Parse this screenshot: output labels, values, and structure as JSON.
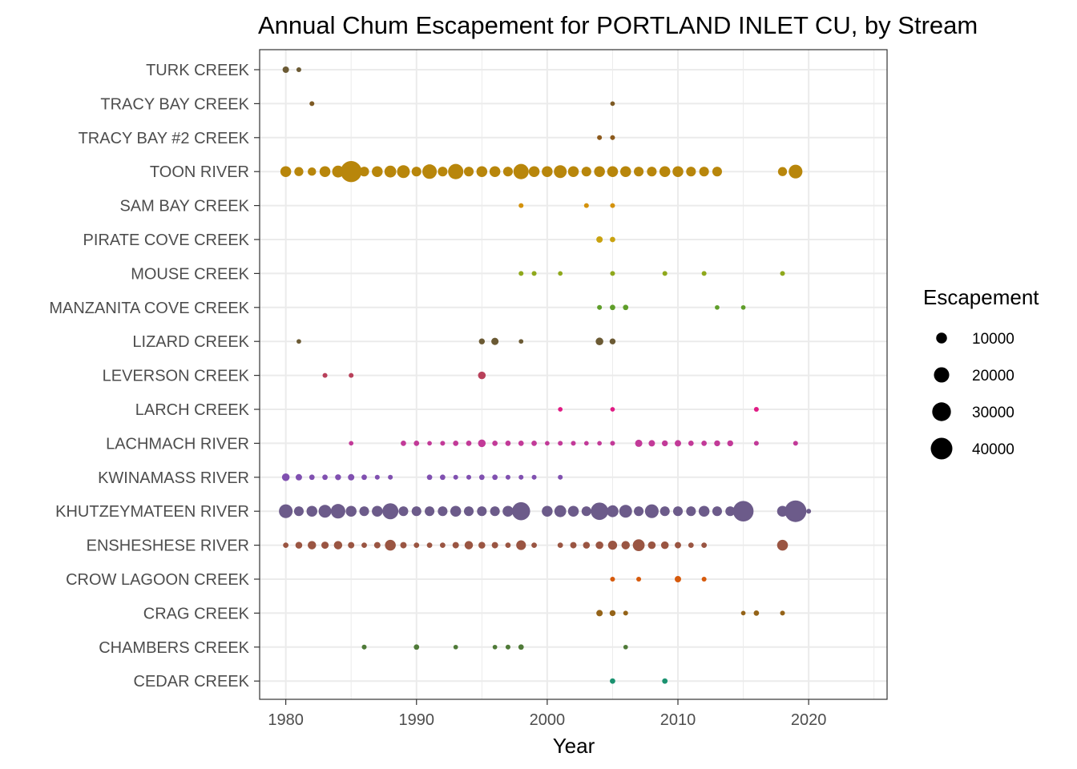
{
  "chart_data": {
    "type": "scatter",
    "title": "Annual Chum Escapement for PORTLAND INLET CU, by Stream",
    "xlabel": "Year",
    "ylabel": "",
    "xlim": [
      1978,
      2026
    ],
    "x_ticks": [
      1980,
      1990,
      2000,
      2010,
      2020
    ],
    "grid": true,
    "legend": {
      "title": "Escapement",
      "placement": "right",
      "breaks": [
        10000,
        20000,
        30000,
        40000
      ]
    },
    "size_max_value": 40000,
    "categories": [
      "TURK CREEK",
      "TRACY BAY CREEK",
      "TRACY BAY #2 CREEK",
      "TOON RIVER",
      "SAM BAY CREEK",
      "PIRATE COVE CREEK",
      "MOUSE CREEK",
      "MANZANITA COVE CREEK",
      "LIZARD CREEK",
      "LEVERSON CREEK",
      "LARCH CREEK",
      "LACHMACH RIVER",
      "KWINAMASS RIVER",
      "KHUTZEYMATEEN RIVER",
      "ENSHESHESE RIVER",
      "CROW LAGOON CREEK",
      "CRAG CREEK",
      "CHAMBERS CREEK",
      "CEDAR CREEK"
    ],
    "series": [
      {
        "name": "TURK CREEK",
        "color": "#6b5a34",
        "points": [
          [
            1980,
            3500
          ],
          [
            1981,
            2000
          ]
        ]
      },
      {
        "name": "TRACY BAY CREEK",
        "color": "#7d5a24",
        "points": [
          [
            1982,
            2000
          ],
          [
            2005,
            1800
          ]
        ]
      },
      {
        "name": "TRACY BAY #2 CREEK",
        "color": "#8c5a1c",
        "points": [
          [
            2004,
            2000
          ],
          [
            2005,
            2000
          ]
        ]
      },
      {
        "name": "TOON RIVER",
        "color": "#b8860b",
        "points": [
          [
            1980,
            10000
          ],
          [
            1981,
            7000
          ],
          [
            1982,
            6000
          ],
          [
            1983,
            10000
          ],
          [
            1984,
            12000
          ],
          [
            1985,
            38000
          ],
          [
            1986,
            8000
          ],
          [
            1987,
            10000
          ],
          [
            1988,
            12000
          ],
          [
            1989,
            14000
          ],
          [
            1990,
            8000
          ],
          [
            1991,
            18000
          ],
          [
            1992,
            8000
          ],
          [
            1993,
            20000
          ],
          [
            1994,
            8000
          ],
          [
            1995,
            10000
          ],
          [
            1996,
            10000
          ],
          [
            1997,
            8000
          ],
          [
            1998,
            6000
          ],
          [
            1999,
            10000
          ],
          [
            1998,
            20000
          ],
          [
            2000,
            10000
          ],
          [
            2001,
            14000
          ],
          [
            2002,
            10000
          ],
          [
            2003,
            8000
          ],
          [
            2004,
            10000
          ],
          [
            2005,
            10000
          ],
          [
            2006,
            10000
          ],
          [
            2007,
            8000
          ],
          [
            2008,
            8000
          ],
          [
            2009,
            10000
          ],
          [
            2010,
            10000
          ],
          [
            2011,
            8000
          ],
          [
            2012,
            8000
          ],
          [
            2013,
            8000
          ],
          [
            2018,
            7000
          ],
          [
            2019,
            16000
          ]
        ]
      },
      {
        "name": "SAM BAY CREEK",
        "color": "#d4920c",
        "points": [
          [
            1998,
            2000
          ],
          [
            2003,
            2000
          ],
          [
            2005,
            2000
          ]
        ]
      },
      {
        "name": "PIRATE COVE CREEK",
        "color": "#c9a210",
        "points": [
          [
            2004,
            3500
          ],
          [
            2005,
            2500
          ]
        ]
      },
      {
        "name": "MOUSE CREEK",
        "color": "#8fa81c",
        "points": [
          [
            1998,
            2000
          ],
          [
            1999,
            2000
          ],
          [
            2001,
            1800
          ],
          [
            2005,
            2000
          ],
          [
            2009,
            2000
          ],
          [
            2012,
            2000
          ],
          [
            2018,
            2000
          ]
        ]
      },
      {
        "name": "MANZANITA COVE CREEK",
        "color": "#5f9e2a",
        "points": [
          [
            2004,
            2000
          ],
          [
            2005,
            2500
          ],
          [
            2006,
            2500
          ],
          [
            2013,
            1800
          ],
          [
            2015,
            1800
          ]
        ]
      },
      {
        "name": "LIZARD CREEK",
        "color": "#6b5a34",
        "points": [
          [
            1981,
            1800
          ],
          [
            1995,
            3000
          ],
          [
            1996,
            4500
          ],
          [
            1998,
            1800
          ],
          [
            2004,
            5000
          ],
          [
            2005,
            3000
          ]
        ]
      },
      {
        "name": "LEVERSON CREEK",
        "color": "#b8405a",
        "points": [
          [
            1983,
            2000
          ],
          [
            1985,
            2000
          ],
          [
            1995,
            5000
          ]
        ]
      },
      {
        "name": "LARCH CREEK",
        "color": "#e01b84",
        "points": [
          [
            2001,
            1800
          ],
          [
            2005,
            1800
          ],
          [
            2016,
            2000
          ]
        ]
      },
      {
        "name": "LACHMACH RIVER",
        "color": "#c23a98",
        "points": [
          [
            1985,
            1800
          ],
          [
            1989,
            2500
          ],
          [
            1990,
            2500
          ],
          [
            1991,
            1800
          ],
          [
            1992,
            2000
          ],
          [
            1993,
            2500
          ],
          [
            1994,
            2500
          ],
          [
            1995,
            5000
          ],
          [
            1996,
            2500
          ],
          [
            1997,
            2500
          ],
          [
            1998,
            2500
          ],
          [
            1999,
            2500
          ],
          [
            2000,
            1800
          ],
          [
            2001,
            2000
          ],
          [
            2002,
            2000
          ],
          [
            2003,
            1800
          ],
          [
            2004,
            1800
          ],
          [
            2005,
            2000
          ],
          [
            2007,
            4500
          ],
          [
            2008,
            3500
          ],
          [
            2009,
            3000
          ],
          [
            2010,
            3500
          ],
          [
            2011,
            2500
          ],
          [
            2012,
            2500
          ],
          [
            2013,
            3000
          ],
          [
            2014,
            3000
          ],
          [
            2016,
            2000
          ],
          [
            2019,
            2000
          ]
        ]
      },
      {
        "name": "KWINAMASS RIVER",
        "color": "#8050b0",
        "points": [
          [
            1980,
            5000
          ],
          [
            1981,
            3500
          ],
          [
            1982,
            2500
          ],
          [
            1983,
            2500
          ],
          [
            1984,
            3000
          ],
          [
            1985,
            3500
          ],
          [
            1986,
            2500
          ],
          [
            1987,
            2000
          ],
          [
            1988,
            2000
          ],
          [
            1991,
            2500
          ],
          [
            1992,
            2500
          ],
          [
            1993,
            2000
          ],
          [
            1994,
            2000
          ],
          [
            1995,
            2500
          ],
          [
            1996,
            2500
          ],
          [
            1997,
            2000
          ],
          [
            1998,
            2000
          ],
          [
            1999,
            2000
          ],
          [
            2001,
            2000
          ]
        ]
      },
      {
        "name": "KHUTZEYMATEEN RIVER",
        "color": "#6c5b8a",
        "points": [
          [
            1980,
            16000
          ],
          [
            1981,
            8000
          ],
          [
            1982,
            10000
          ],
          [
            1983,
            14000
          ],
          [
            1984,
            18000
          ],
          [
            1985,
            10000
          ],
          [
            1986,
            8000
          ],
          [
            1987,
            10000
          ],
          [
            1988,
            22000
          ],
          [
            1989,
            8000
          ],
          [
            1990,
            8000
          ],
          [
            1991,
            8000
          ],
          [
            1992,
            8000
          ],
          [
            1993,
            10000
          ],
          [
            1994,
            8000
          ],
          [
            1995,
            8000
          ],
          [
            1996,
            8000
          ],
          [
            1997,
            8000
          ],
          [
            1998,
            28000
          ],
          [
            1997,
            10000
          ],
          [
            2000,
            10000
          ],
          [
            2001,
            12000
          ],
          [
            2002,
            10000
          ],
          [
            2003,
            8000
          ],
          [
            2004,
            26000
          ],
          [
            2005,
            12000
          ],
          [
            2006,
            14000
          ],
          [
            2007,
            8000
          ],
          [
            2008,
            16000
          ],
          [
            2009,
            8000
          ],
          [
            2010,
            8000
          ],
          [
            2011,
            8000
          ],
          [
            2012,
            10000
          ],
          [
            2013,
            8000
          ],
          [
            2014,
            8000
          ],
          [
            2015,
            36000
          ],
          [
            2018,
            10000
          ],
          [
            2019,
            40000
          ],
          [
            2020,
            2000
          ]
        ]
      },
      {
        "name": "ENSHESHESE RIVER",
        "color": "#9a5542",
        "points": [
          [
            1980,
            2500
          ],
          [
            1981,
            4000
          ],
          [
            1982,
            6000
          ],
          [
            1983,
            4500
          ],
          [
            1984,
            6000
          ],
          [
            1985,
            3500
          ],
          [
            1986,
            2500
          ],
          [
            1987,
            3500
          ],
          [
            1988,
            10000
          ],
          [
            1989,
            3500
          ],
          [
            1990,
            2500
          ],
          [
            1991,
            2500
          ],
          [
            1992,
            2500
          ],
          [
            1993,
            3500
          ],
          [
            1994,
            6000
          ],
          [
            1995,
            4000
          ],
          [
            1996,
            3500
          ],
          [
            1997,
            2500
          ],
          [
            1998,
            8000
          ],
          [
            1999,
            2500
          ],
          [
            2001,
            2500
          ],
          [
            2002,
            3500
          ],
          [
            2003,
            4000
          ],
          [
            2004,
            5000
          ],
          [
            2005,
            7000
          ],
          [
            2006,
            6000
          ],
          [
            2007,
            12000
          ],
          [
            2008,
            5000
          ],
          [
            2009,
            5000
          ],
          [
            2010,
            3500
          ],
          [
            2011,
            2500
          ],
          [
            2012,
            2500
          ],
          [
            2018,
            10000
          ]
        ]
      },
      {
        "name": "CROW LAGOON CREEK",
        "color": "#d65a0c",
        "points": [
          [
            2005,
            2000
          ],
          [
            2007,
            2000
          ],
          [
            2010,
            3500
          ],
          [
            2012,
            2000
          ]
        ]
      },
      {
        "name": "CRAG CREEK",
        "color": "#946318",
        "points": [
          [
            2004,
            3500
          ],
          [
            2005,
            3000
          ],
          [
            2006,
            2000
          ],
          [
            2015,
            1800
          ],
          [
            2016,
            2500
          ],
          [
            2018,
            2000
          ]
        ]
      },
      {
        "name": "CHAMBERS CREEK",
        "color": "#4f7a38",
        "points": [
          [
            1986,
            2000
          ],
          [
            1990,
            2500
          ],
          [
            1993,
            1800
          ],
          [
            1996,
            1800
          ],
          [
            1997,
            2000
          ],
          [
            1998,
            2500
          ],
          [
            2006,
            1800
          ]
        ]
      },
      {
        "name": "CEDAR CREEK",
        "color": "#1b9270",
        "points": [
          [
            2005,
            2500
          ],
          [
            2009,
            2500
          ]
        ]
      }
    ]
  }
}
